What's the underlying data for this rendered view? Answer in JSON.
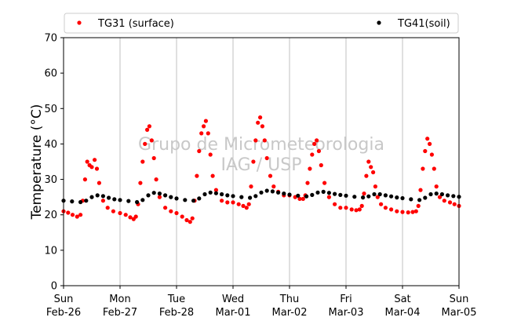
{
  "chart_data": {
    "type": "scatter",
    "ylabel": "Temperature (°C)",
    "xlabel": "",
    "ylim": [
      0,
      70
    ],
    "yticks": [
      0,
      10,
      20,
      30,
      40,
      50,
      60,
      70
    ],
    "xlim_days": [
      0,
      7
    ],
    "xticks": [
      {
        "day": "Sun",
        "date": "Feb-26"
      },
      {
        "day": "Mon",
        "date": "Feb-27"
      },
      {
        "day": "Tue",
        "date": "Feb-28"
      },
      {
        "day": "Wed",
        "date": "Mar-01"
      },
      {
        "day": "Thu",
        "date": "Mar-02"
      },
      {
        "day": "Fri",
        "date": "Mar-03"
      },
      {
        "day": "Sat",
        "date": "Mar-04"
      },
      {
        "day": "Sun",
        "date": "Mar-05"
      }
    ],
    "grid": "vertical",
    "legend_position": "top",
    "watermark": [
      "Grupo de Micrometeorologia",
      "IAG / USP"
    ],
    "series": [
      {
        "name": "TG31 (surface)",
        "color": "#ff0000",
        "points": [
          [
            0.0,
            21.0
          ],
          [
            0.08,
            20.6
          ],
          [
            0.16,
            20.0
          ],
          [
            0.24,
            19.5
          ],
          [
            0.3,
            20.0
          ],
          [
            0.34,
            24.0
          ],
          [
            0.38,
            30.0
          ],
          [
            0.42,
            35.0
          ],
          [
            0.46,
            34.0
          ],
          [
            0.5,
            33.5
          ],
          [
            0.55,
            35.5
          ],
          [
            0.59,
            33.0
          ],
          [
            0.63,
            29.0
          ],
          [
            0.7,
            24.0
          ],
          [
            0.78,
            22.0
          ],
          [
            0.88,
            21.0
          ],
          [
            1.0,
            20.5
          ],
          [
            1.1,
            20.0
          ],
          [
            1.18,
            19.3
          ],
          [
            1.24,
            18.8
          ],
          [
            1.28,
            19.5
          ],
          [
            1.32,
            23.0
          ],
          [
            1.36,
            29.0
          ],
          [
            1.4,
            35.0
          ],
          [
            1.44,
            40.0
          ],
          [
            1.48,
            44.0
          ],
          [
            1.52,
            45.0
          ],
          [
            1.56,
            41.0
          ],
          [
            1.6,
            36.0
          ],
          [
            1.64,
            30.0
          ],
          [
            1.7,
            25.0
          ],
          [
            1.8,
            22.0
          ],
          [
            1.9,
            21.0
          ],
          [
            2.0,
            20.5
          ],
          [
            2.1,
            19.5
          ],
          [
            2.18,
            18.5
          ],
          [
            2.24,
            18.0
          ],
          [
            2.28,
            19.0
          ],
          [
            2.32,
            24.0
          ],
          [
            2.36,
            31.0
          ],
          [
            2.4,
            38.0
          ],
          [
            2.44,
            43.0
          ],
          [
            2.48,
            45.0
          ],
          [
            2.52,
            46.5
          ],
          [
            2.56,
            43.0
          ],
          [
            2.6,
            37.0
          ],
          [
            2.64,
            31.0
          ],
          [
            2.7,
            27.0
          ],
          [
            2.8,
            24.0
          ],
          [
            2.9,
            23.5
          ],
          [
            3.0,
            23.5
          ],
          [
            3.1,
            23.0
          ],
          [
            3.18,
            22.5
          ],
          [
            3.24,
            22.0
          ],
          [
            3.28,
            23.0
          ],
          [
            3.32,
            28.0
          ],
          [
            3.36,
            35.0
          ],
          [
            3.4,
            41.0
          ],
          [
            3.44,
            46.0
          ],
          [
            3.48,
            47.5
          ],
          [
            3.52,
            45.0
          ],
          [
            3.56,
            41.0
          ],
          [
            3.6,
            36.0
          ],
          [
            3.66,
            31.0
          ],
          [
            3.72,
            28.0
          ],
          [
            3.8,
            26.5
          ],
          [
            3.9,
            25.5
          ],
          [
            4.0,
            25.5
          ],
          [
            4.1,
            25.0
          ],
          [
            4.18,
            24.5
          ],
          [
            4.24,
            24.5
          ],
          [
            4.28,
            25.5
          ],
          [
            4.32,
            29.0
          ],
          [
            4.36,
            33.0
          ],
          [
            4.4,
            37.0
          ],
          [
            4.44,
            40.0
          ],
          [
            4.48,
            41.0
          ],
          [
            4.52,
            38.0
          ],
          [
            4.56,
            34.0
          ],
          [
            4.62,
            29.0
          ],
          [
            4.7,
            25.0
          ],
          [
            4.8,
            23.0
          ],
          [
            4.9,
            22.0
          ],
          [
            5.0,
            22.0
          ],
          [
            5.1,
            21.5
          ],
          [
            5.18,
            21.3
          ],
          [
            5.24,
            21.5
          ],
          [
            5.28,
            22.5
          ],
          [
            5.32,
            26.0
          ],
          [
            5.36,
            31.0
          ],
          [
            5.4,
            35.0
          ],
          [
            5.44,
            33.5
          ],
          [
            5.48,
            32.0
          ],
          [
            5.52,
            28.0
          ],
          [
            5.56,
            25.0
          ],
          [
            5.62,
            23.0
          ],
          [
            5.7,
            22.0
          ],
          [
            5.8,
            21.5
          ],
          [
            5.9,
            21.0
          ],
          [
            6.0,
            20.8
          ],
          [
            6.1,
            20.7
          ],
          [
            6.18,
            20.8
          ],
          [
            6.24,
            21.0
          ],
          [
            6.28,
            22.5
          ],
          [
            6.32,
            27.0
          ],
          [
            6.36,
            33.0
          ],
          [
            6.4,
            38.0
          ],
          [
            6.44,
            41.5
          ],
          [
            6.48,
            40.0
          ],
          [
            6.52,
            37.0
          ],
          [
            6.56,
            33.0
          ],
          [
            6.6,
            28.0
          ],
          [
            6.66,
            25.0
          ],
          [
            6.74,
            24.0
          ],
          [
            6.84,
            23.5
          ],
          [
            6.92,
            23.0
          ],
          [
            7.0,
            22.5
          ]
        ]
      },
      {
        "name": "TG41(soil)",
        "color": "#000000",
        "points": [
          [
            0.0,
            24.0
          ],
          [
            0.15,
            23.8
          ],
          [
            0.3,
            23.6
          ],
          [
            0.4,
            24.0
          ],
          [
            0.5,
            25.0
          ],
          [
            0.6,
            25.5
          ],
          [
            0.7,
            25.3
          ],
          [
            0.8,
            24.8
          ],
          [
            0.9,
            24.4
          ],
          [
            1.0,
            24.2
          ],
          [
            1.15,
            23.9
          ],
          [
            1.3,
            23.6
          ],
          [
            1.4,
            24.2
          ],
          [
            1.5,
            25.5
          ],
          [
            1.6,
            26.2
          ],
          [
            1.7,
            26.0
          ],
          [
            1.8,
            25.5
          ],
          [
            1.9,
            25.0
          ],
          [
            2.0,
            24.6
          ],
          [
            2.15,
            24.2
          ],
          [
            2.3,
            24.0
          ],
          [
            2.4,
            24.6
          ],
          [
            2.5,
            25.8
          ],
          [
            2.6,
            26.3
          ],
          [
            2.7,
            26.1
          ],
          [
            2.8,
            25.8
          ],
          [
            2.9,
            25.5
          ],
          [
            3.0,
            25.3
          ],
          [
            3.15,
            25.0
          ],
          [
            3.3,
            24.8
          ],
          [
            3.4,
            25.3
          ],
          [
            3.5,
            26.3
          ],
          [
            3.6,
            26.8
          ],
          [
            3.7,
            26.6
          ],
          [
            3.8,
            26.3
          ],
          [
            3.9,
            26.0
          ],
          [
            4.0,
            25.7
          ],
          [
            4.15,
            25.4
          ],
          [
            4.3,
            25.2
          ],
          [
            4.4,
            25.6
          ],
          [
            4.5,
            26.3
          ],
          [
            4.6,
            26.5
          ],
          [
            4.7,
            26.2
          ],
          [
            4.8,
            25.9
          ],
          [
            4.9,
            25.6
          ],
          [
            5.0,
            25.4
          ],
          [
            5.15,
            25.1
          ],
          [
            5.3,
            24.9
          ],
          [
            5.4,
            25.2
          ],
          [
            5.5,
            25.8
          ],
          [
            5.6,
            25.8
          ],
          [
            5.7,
            25.5
          ],
          [
            5.8,
            25.2
          ],
          [
            5.9,
            24.9
          ],
          [
            6.0,
            24.7
          ],
          [
            6.15,
            24.4
          ],
          [
            6.3,
            24.2
          ],
          [
            6.4,
            24.8
          ],
          [
            6.5,
            25.8
          ],
          [
            6.6,
            26.0
          ],
          [
            6.7,
            25.8
          ],
          [
            6.8,
            25.5
          ],
          [
            6.9,
            25.3
          ],
          [
            7.0,
            25.1
          ]
        ]
      }
    ]
  }
}
